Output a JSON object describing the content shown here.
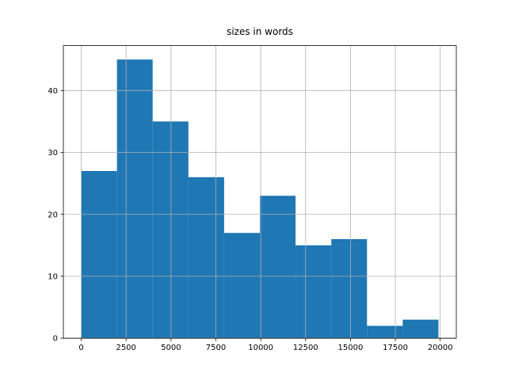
{
  "chart_data": {
    "type": "histogram",
    "title": "sizes in words",
    "bins": [
      0,
      1990,
      3980,
      5970,
      7960,
      9950,
      11940,
      13930,
      15920,
      17910,
      19900
    ],
    "values": [
      27,
      45,
      35,
      26,
      17,
      23,
      15,
      16,
      2,
      3
    ],
    "color": "#1f77b4",
    "xlim": [
      -995,
      20895
    ],
    "xticks": [
      0,
      2500,
      5000,
      7500,
      10000,
      12500,
      15000,
      17500,
      20000
    ],
    "ylim": [
      0,
      47.25
    ],
    "yticks": [
      0,
      10,
      20,
      30,
      40
    ],
    "grid": true
  }
}
